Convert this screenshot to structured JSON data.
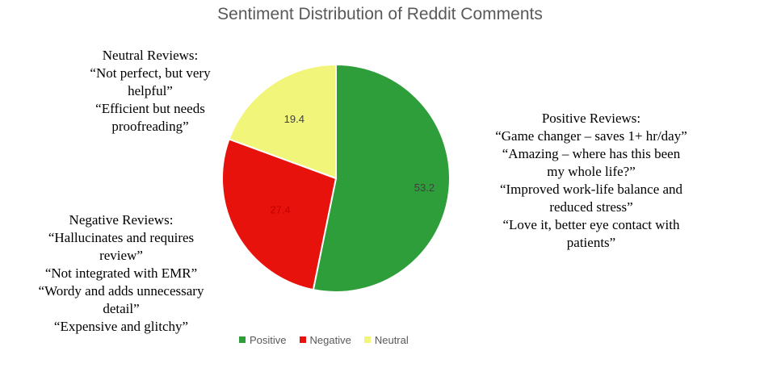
{
  "chart_data": {
    "type": "pie",
    "title": "Sentiment Distribution of Reddit Comments",
    "categories": [
      "Positive",
      "Negative",
      "Neutral"
    ],
    "values": [
      53.2,
      27.4,
      19.4
    ],
    "colors": [
      "#2e9e3a",
      "#e8120c",
      "#f1f57a"
    ],
    "label_colors": [
      "#404040",
      "#c00000",
      "#404040"
    ],
    "legend": {
      "position": "bottom",
      "items": [
        {
          "label": "Positive",
          "color": "#2e9e3a"
        },
        {
          "label": "Negative",
          "color": "#e8120c"
        },
        {
          "label": "Neutral",
          "color": "#f1f57a"
        }
      ]
    }
  },
  "annotations": {
    "neutral": {
      "lines": [
        "Neutral Reviews:",
        "“Not perfect, but very",
        "helpful”",
        "“Efficient but needs",
        "proofreading”"
      ]
    },
    "negative": {
      "lines": [
        "Negative Reviews:",
        "“Hallucinates and requires",
        "review”",
        "“Not integrated with EMR”",
        "“Wordy and adds unnecessary",
        "detail”",
        "“Expensive and glitchy”"
      ]
    },
    "positive": {
      "lines": [
        "Positive Reviews:",
        "“Game changer – saves 1+ hr/day”",
        "“Amazing – where has this been",
        "my whole life?”",
        "“Improved work-life balance and",
        "reduced stress”",
        "“Love it, better eye contact with",
        "patients”"
      ]
    }
  }
}
